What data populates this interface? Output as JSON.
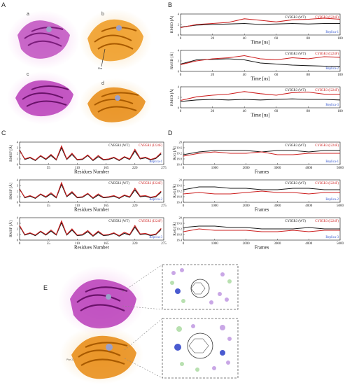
{
  "panels": {
    "A": {
      "letter": "A",
      "sublabels": [
        "a",
        "b",
        "c",
        "d"
      ],
      "annotation": "Phe"
    },
    "B": {
      "letter": "B"
    },
    "C": {
      "letter": "C"
    },
    "D": {
      "letter": "D"
    },
    "E": {
      "letter": "E",
      "annotation": "Phe 224"
    }
  },
  "colors": {
    "wt": "#1a1a1a",
    "mutant": "#cc1f1f",
    "replica": "#3a5bd0",
    "protein_a": "#b83cb8",
    "protein_b": "#e88a10",
    "halo_a": "#f3c6ef",
    "halo_b": "#f7dcae"
  },
  "icons": [
    "protein-ribbon-icon",
    "ligand-interaction-map-icon"
  ],
  "chart_data": [
    {
      "type": "line",
      "panel": "B",
      "replica": "Replica-1",
      "xlabel": "Time [ns]",
      "ylabel": "RMSD [Å]",
      "xlim": [
        0,
        100
      ],
      "ylim": [
        0,
        4
      ],
      "xticks": [
        0,
        20,
        40,
        60,
        80,
        100
      ],
      "yticks": [
        0,
        2,
        4
      ],
      "legend": [
        {
          "name": "CYB5R3 (WT)",
          "color": "#1a1a1a"
        },
        {
          "name": "CYB5R3 (I224F)",
          "color": "#cc1f1f"
        }
      ],
      "x": [
        0,
        10,
        20,
        30,
        40,
        50,
        60,
        70,
        80,
        90,
        100
      ],
      "series": [
        {
          "name": "CYB5R3 (WT)",
          "values": [
            1.5,
            1.9,
            2.0,
            2.1,
            2.2,
            2.0,
            2.1,
            2.2,
            2.1,
            2.2,
            2.2
          ]
        },
        {
          "name": "CYB5R3 (I224F)",
          "values": [
            1.4,
            2.0,
            2.2,
            2.4,
            3.1,
            2.8,
            2.5,
            2.9,
            3.0,
            3.2,
            3.0
          ]
        }
      ]
    },
    {
      "type": "line",
      "panel": "B",
      "replica": "Replica-2",
      "xlabel": "Time [ns]",
      "ylabel": "RMSD [Å]",
      "xlim": [
        0,
        100
      ],
      "ylim": [
        0,
        4
      ],
      "xticks": [
        0,
        20,
        40,
        60,
        80,
        100
      ],
      "yticks": [
        0,
        2,
        4
      ],
      "legend": [
        {
          "name": "CYB5R3 (WT)",
          "color": "#1a1a1a"
        },
        {
          "name": "CYB5R3 (I224F)",
          "color": "#cc1f1f"
        }
      ],
      "x": [
        0,
        10,
        20,
        30,
        40,
        50,
        60,
        70,
        80,
        90,
        100
      ],
      "series": [
        {
          "name": "CYB5R3 (WT)",
          "values": [
            1.4,
            2.2,
            2.3,
            2.4,
            2.2,
            1.6,
            1.4,
            1.2,
            1.1,
            1.0,
            0.9
          ]
        },
        {
          "name": "CYB5R3 (I224F)",
          "values": [
            1.3,
            2.0,
            2.4,
            2.6,
            3.0,
            2.4,
            2.2,
            2.6,
            2.4,
            2.8,
            2.7
          ]
        }
      ]
    },
    {
      "type": "line",
      "panel": "B",
      "replica": "Replica-3",
      "xlabel": "Time [ns]",
      "ylabel": "RMSD [Å]",
      "xlim": [
        0,
        100
      ],
      "ylim": [
        0,
        4
      ],
      "xticks": [
        0,
        20,
        40,
        60,
        80,
        100
      ],
      "yticks": [
        0,
        2,
        4
      ],
      "legend": [
        {
          "name": "CYB5R3 (WT)",
          "color": "#1a1a1a"
        },
        {
          "name": "CYB5R3 (I224F)",
          "color": "#cc1f1f"
        }
      ],
      "x": [
        0,
        10,
        20,
        30,
        40,
        50,
        60,
        70,
        80,
        90,
        100
      ],
      "series": [
        {
          "name": "CYB5R3 (WT)",
          "values": [
            1.2,
            1.5,
            1.6,
            1.5,
            1.6,
            1.5,
            1.6,
            1.7,
            1.6,
            1.6,
            1.5
          ]
        },
        {
          "name": "CYB5R3 (I224F)",
          "values": [
            1.4,
            2.1,
            2.4,
            2.6,
            3.1,
            2.7,
            2.4,
            2.9,
            3.0,
            2.6,
            2.6
          ]
        }
      ]
    },
    {
      "type": "line",
      "panel": "C",
      "replica": "Replica-1",
      "xlabel": "Residues Number",
      "ylabel": "RMSF [Å]",
      "xlim": [
        0,
        275
      ],
      "ylim": [
        0,
        4
      ],
      "xticks": [
        0,
        55,
        110,
        165,
        220,
        275
      ],
      "yticks": [
        0,
        1,
        2,
        3,
        4
      ],
      "legend": [
        {
          "name": "CYB5R3 (WT)",
          "color": "#1a1a1a"
        },
        {
          "name": "CYB5R3 (I224F)",
          "color": "#cc1f1f"
        }
      ],
      "x": [
        0,
        10,
        20,
        30,
        40,
        50,
        60,
        70,
        80,
        90,
        100,
        110,
        120,
        130,
        140,
        150,
        160,
        170,
        180,
        190,
        200,
        210,
        220,
        230,
        240,
        250,
        260,
        270
      ],
      "series": [
        {
          "name": "CYB5R3 (WT)",
          "values": [
            2.6,
            0.9,
            1.2,
            0.7,
            1.5,
            0.9,
            1.6,
            0.8,
            3.0,
            0.9,
            1.8,
            0.8,
            0.9,
            1.6,
            0.7,
            1.4,
            0.8,
            0.9,
            1.2,
            0.7,
            1.3,
            0.9,
            2.4,
            1.0,
            1.2,
            0.8,
            1.1,
            1.9
          ]
        },
        {
          "name": "CYB5R3 (I224F)",
          "values": [
            2.5,
            1.0,
            1.3,
            0.8,
            1.6,
            1.0,
            1.8,
            0.9,
            3.3,
            1.0,
            2.0,
            0.9,
            1.0,
            1.7,
            0.8,
            1.6,
            0.9,
            1.0,
            1.3,
            0.8,
            1.4,
            1.0,
            2.7,
            1.1,
            1.3,
            0.9,
            1.2,
            2.1
          ]
        }
      ]
    },
    {
      "type": "line",
      "panel": "C",
      "replica": "Replica-2",
      "xlabel": "Residues Number",
      "ylabel": "RMSF [Å]",
      "xlim": [
        0,
        275
      ],
      "ylim": [
        0,
        4
      ],
      "xticks": [
        0,
        55,
        110,
        165,
        220,
        275
      ],
      "yticks": [
        0,
        1,
        2,
        3,
        4
      ],
      "legend": [
        {
          "name": "CYB5R3 (WT)",
          "color": "#1a1a1a"
        },
        {
          "name": "CYB5R3 (I224F)",
          "color": "#cc1f1f"
        }
      ],
      "x": [
        0,
        10,
        20,
        30,
        40,
        50,
        60,
        70,
        80,
        90,
        100,
        110,
        120,
        130,
        140,
        150,
        160,
        170,
        180,
        190,
        200,
        210,
        220,
        230,
        240,
        250,
        260,
        270
      ],
      "series": [
        {
          "name": "CYB5R3 (WT)",
          "values": [
            2.4,
            0.8,
            1.1,
            0.7,
            1.4,
            0.9,
            1.5,
            0.8,
            3.2,
            1.0,
            1.7,
            0.8,
            0.9,
            1.5,
            0.7,
            1.3,
            0.8,
            0.9,
            1.1,
            0.7,
            1.2,
            0.9,
            2.2,
            1.0,
            1.1,
            0.8,
            1.0,
            1.8
          ]
        },
        {
          "name": "CYB5R3 (I224F)",
          "values": [
            2.3,
            0.9,
            1.2,
            0.8,
            1.5,
            1.0,
            1.7,
            0.9,
            3.5,
            1.1,
            1.9,
            0.9,
            1.0,
            1.6,
            0.8,
            1.5,
            0.9,
            1.0,
            1.2,
            0.8,
            1.3,
            1.0,
            2.5,
            1.1,
            1.2,
            0.9,
            1.1,
            2.0
          ]
        }
      ]
    },
    {
      "type": "line",
      "panel": "C",
      "replica": "Replica-3",
      "xlabel": "Residues Number",
      "ylabel": "RMSF [Å]",
      "xlim": [
        0,
        275
      ],
      "ylim": [
        0,
        4
      ],
      "xticks": [
        0,
        55,
        110,
        165,
        220,
        275
      ],
      "yticks": [
        0,
        1,
        2,
        3,
        4
      ],
      "legend": [
        {
          "name": "CYB5R3 (WT)",
          "color": "#1a1a1a"
        },
        {
          "name": "CYB5R3 (I224F)",
          "color": "#cc1f1f"
        }
      ],
      "x": [
        0,
        10,
        20,
        30,
        40,
        50,
        60,
        70,
        80,
        90,
        100,
        110,
        120,
        130,
        140,
        150,
        160,
        170,
        180,
        190,
        200,
        210,
        220,
        230,
        240,
        250,
        260,
        270
      ],
      "series": [
        {
          "name": "CYB5R3 (WT)",
          "values": [
            2.5,
            0.9,
            1.2,
            0.8,
            1.5,
            0.9,
            1.6,
            0.9,
            3.1,
            0.9,
            1.8,
            0.8,
            0.9,
            1.5,
            0.7,
            1.4,
            0.8,
            0.9,
            1.2,
            0.7,
            1.2,
            0.9,
            2.3,
            1.0,
            1.1,
            0.8,
            1.0,
            1.9
          ]
        },
        {
          "name": "CYB5R3 (I224F)",
          "values": [
            2.6,
            1.0,
            1.3,
            0.9,
            1.6,
            1.0,
            1.8,
            1.0,
            3.4,
            1.0,
            2.0,
            0.9,
            1.0,
            1.7,
            0.8,
            1.6,
            0.9,
            1.0,
            1.3,
            0.8,
            1.4,
            1.0,
            2.6,
            1.1,
            1.2,
            0.9,
            1.1,
            2.1
          ]
        }
      ]
    },
    {
      "type": "line",
      "panel": "D",
      "replica": "Replica-1",
      "xlabel": "Frames",
      "ylabel": "RoG [Å]",
      "xlim": [
        0,
        5000
      ],
      "ylim": [
        18.4,
        20.0
      ],
      "xticks": [
        0,
        1000,
        2000,
        3000,
        4000,
        5000
      ],
      "yticks": [
        18.4,
        18.8,
        19.2,
        19.6,
        20.0
      ],
      "legend": [
        {
          "name": "CYB5R3 (WT)",
          "color": "#1a1a1a"
        },
        {
          "name": "CYB5R3 (I224F)",
          "color": "#cc1f1f"
        }
      ],
      "x": [
        0,
        500,
        1000,
        1500,
        2000,
        2500,
        3000,
        3500,
        4000,
        4500,
        5000
      ],
      "series": [
        {
          "name": "CYB5R3 (WT)",
          "values": [
            19.1,
            19.3,
            19.4,
            19.4,
            19.4,
            19.3,
            19.4,
            19.4,
            19.3,
            19.4,
            19.4
          ]
        },
        {
          "name": "CYB5R3 (I224F)",
          "values": [
            19.0,
            19.2,
            19.3,
            19.2,
            19.2,
            19.3,
            19.1,
            19.1,
            19.2,
            19.2,
            19.2
          ]
        }
      ]
    },
    {
      "type": "line",
      "panel": "D",
      "replica": "Replica-2",
      "xlabel": "Frames",
      "ylabel": "RoG [Å]",
      "xlim": [
        0,
        5000
      ],
      "ylim": [
        18.4,
        20.0
      ],
      "xticks": [
        0,
        1000,
        2000,
        3000,
        4000,
        5000
      ],
      "yticks": [
        18.4,
        18.8,
        19.2,
        19.6,
        20.0
      ],
      "legend": [
        {
          "name": "CYB5R3 (WT)",
          "color": "#1a1a1a"
        },
        {
          "name": "CYB5R3 (I224F)",
          "color": "#cc1f1f"
        }
      ],
      "x": [
        0,
        500,
        1000,
        1500,
        2000,
        2500,
        3000,
        3500,
        4000,
        4500,
        5000
      ],
      "series": [
        {
          "name": "CYB5R3 (WT)",
          "values": [
            19.3,
            19.5,
            19.5,
            19.4,
            19.4,
            19.3,
            19.3,
            19.4,
            19.4,
            19.3,
            19.3
          ]
        },
        {
          "name": "CYB5R3 (I224F)",
          "values": [
            19.0,
            19.1,
            19.0,
            19.0,
            19.1,
            19.2,
            19.1,
            19.1,
            19.0,
            19.1,
            19.1
          ]
        }
      ]
    },
    {
      "type": "line",
      "panel": "D",
      "replica": "Replica-3",
      "xlabel": "Frames",
      "ylabel": "RoG [Å]",
      "xlim": [
        0,
        5000
      ],
      "ylim": [
        18.4,
        20.0
      ],
      "xticks": [
        0,
        1000,
        2000,
        3000,
        4000,
        5000
      ],
      "yticks": [
        18.4,
        18.8,
        19.2,
        19.6,
        20.0
      ],
      "legend": [
        {
          "name": "CYB5R3 (WT)",
          "color": "#1a1a1a"
        },
        {
          "name": "CYB5R3 (I224F)",
          "color": "#cc1f1f"
        }
      ],
      "x": [
        0,
        500,
        1000,
        1500,
        2000,
        2500,
        3000,
        3500,
        4000,
        4500,
        5000
      ],
      "series": [
        {
          "name": "CYB5R3 (WT)",
          "values": [
            19.3,
            19.4,
            19.4,
            19.3,
            19.3,
            19.2,
            19.2,
            19.2,
            19.3,
            19.2,
            19.2
          ]
        },
        {
          "name": "CYB5R3 (I224F)",
          "values": [
            19.0,
            19.2,
            19.1,
            19.1,
            19.1,
            19.0,
            19.0,
            19.1,
            19.0,
            19.1,
            19.1
          ]
        }
      ]
    }
  ]
}
